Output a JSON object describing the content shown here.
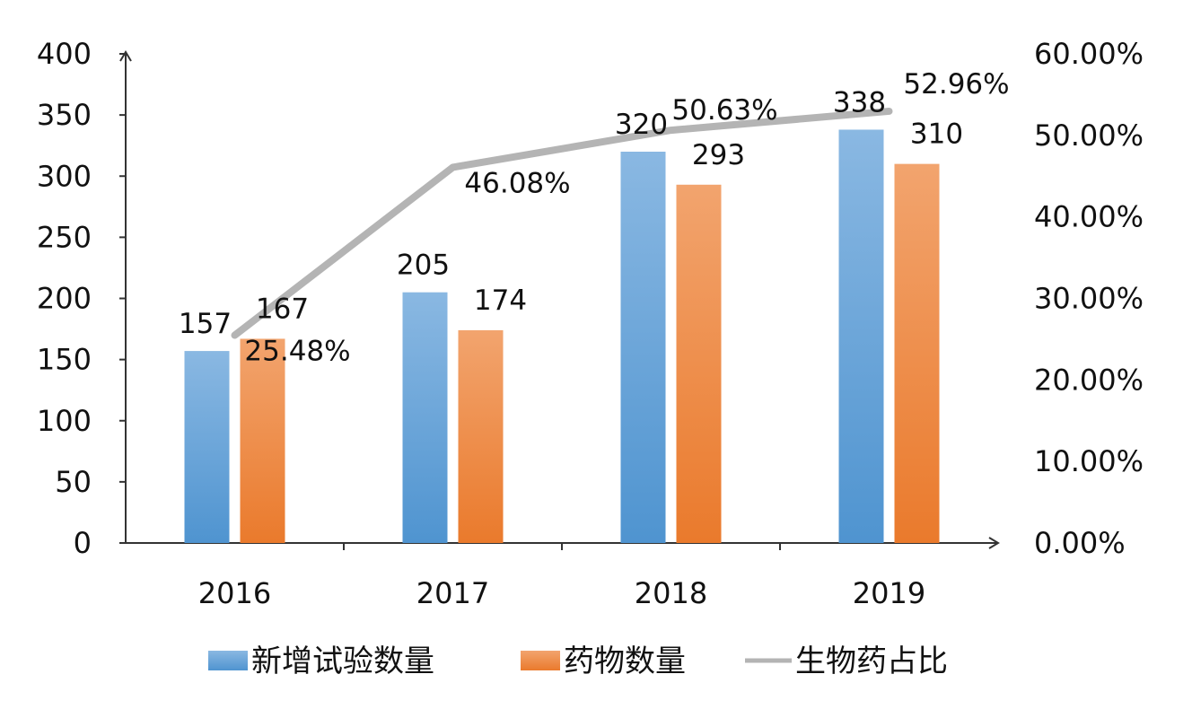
{
  "chart_data": {
    "type": "bar",
    "categories": [
      "2016",
      "2017",
      "2018",
      "2019"
    ],
    "series": [
      {
        "name": "新增试验数量",
        "kind": "bar",
        "axis": "left",
        "values": [
          157,
          205,
          320,
          338
        ],
        "labels": [
          "157",
          "205",
          "320",
          "338"
        ],
        "color": "#5b9bd5"
      },
      {
        "name": "药物数量",
        "kind": "bar",
        "axis": "left",
        "values": [
          167,
          174,
          293,
          310
        ],
        "labels": [
          "167",
          "174",
          "293",
          "310"
        ],
        "color": "#ed7d31"
      },
      {
        "name": "生物药占比",
        "kind": "line",
        "axis": "right",
        "values": [
          25.48,
          46.08,
          50.63,
          52.96
        ],
        "labels": [
          "25.48%",
          "46.08%",
          "50.63%",
          "52.96%"
        ],
        "color": "#b4b4b4"
      }
    ],
    "y_left": {
      "range": [
        0,
        400
      ],
      "ticks": [
        0,
        50,
        100,
        150,
        200,
        250,
        300,
        350,
        400
      ],
      "tick_labels": [
        "0",
        "50",
        "100",
        "150",
        "200",
        "250",
        "300",
        "350",
        "400"
      ]
    },
    "y_right": {
      "range": [
        0,
        60
      ],
      "ticks": [
        0,
        10,
        20,
        30,
        40,
        50,
        60
      ],
      "tick_labels": [
        "0.00%",
        "10.00%",
        "20.00%",
        "30.00%",
        "40.00%",
        "50.00%",
        "60.00%"
      ]
    },
    "title": "",
    "xlabel": "",
    "ylabel": "",
    "grid": false,
    "legend_position": "bottom"
  }
}
